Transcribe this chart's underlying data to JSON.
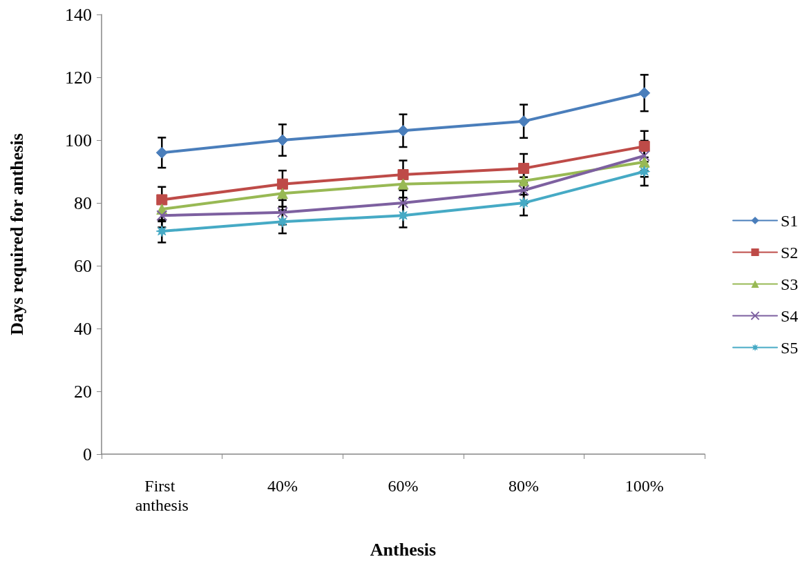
{
  "chart_data": {
    "type": "line",
    "xlabel": "Anthesis",
    "ylabel": "Days required for anthesis",
    "categories": [
      "First anthesis",
      "40%",
      "60%",
      "80%",
      "100%"
    ],
    "ylim": [
      0,
      140
    ],
    "yticks": [
      0,
      20,
      40,
      60,
      80,
      100,
      120,
      140
    ],
    "grid": false,
    "legend": "right",
    "line_style": "solid",
    "series": [
      {
        "name": "S1",
        "color": "#4a7ebb",
        "marker": "diamond",
        "values": [
          96,
          100,
          103,
          106,
          115
        ],
        "errors": [
          4.8,
          5,
          5.2,
          5.3,
          5.8
        ]
      },
      {
        "name": "S2",
        "color": "#be4b48",
        "marker": "square",
        "values": [
          81,
          86,
          89,
          91,
          98
        ],
        "errors": [
          4.1,
          4.3,
          4.5,
          4.6,
          4.9
        ]
      },
      {
        "name": "S3",
        "color": "#98b954",
        "marker": "triangle",
        "values": [
          78,
          83,
          86,
          87,
          93
        ],
        "errors": [
          3.9,
          4.2,
          4.3,
          4.4,
          4.7
        ]
      },
      {
        "name": "S4",
        "color": "#7d60a0",
        "marker": "cross",
        "values": [
          76,
          77,
          80,
          84,
          95
        ],
        "errors": [
          3.8,
          3.9,
          4,
          4.2,
          4.8
        ]
      },
      {
        "name": "S5",
        "color": "#46aac5",
        "marker": "star",
        "values": [
          71,
          74,
          76,
          80,
          90
        ],
        "errors": [
          3.6,
          3.7,
          3.8,
          4,
          4.5
        ]
      }
    ]
  }
}
